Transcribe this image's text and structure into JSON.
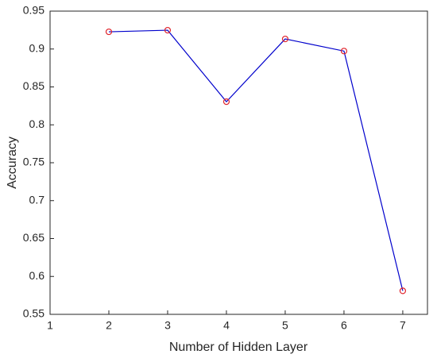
{
  "chart_data": {
    "type": "line",
    "xlabel": "Number of Hidden Layer",
    "ylabel": "Accuracy",
    "x": [
      2,
      3,
      4,
      5,
      6,
      7
    ],
    "series": [
      {
        "color": "#0000cc",
        "marker_color": "#e0242c",
        "values": [
          0.9227,
          0.9248,
          0.8305,
          0.9133,
          0.8973,
          0.581
        ]
      }
    ],
    "xlim": [
      1,
      7.42
    ],
    "xticks": [
      1,
      2,
      3,
      4,
      5,
      6,
      7
    ],
    "ylim": [
      0.55,
      0.95
    ],
    "yticks": [
      0.55,
      0.6,
      0.65,
      0.7,
      0.75,
      0.8,
      0.85,
      0.9,
      0.95
    ]
  }
}
